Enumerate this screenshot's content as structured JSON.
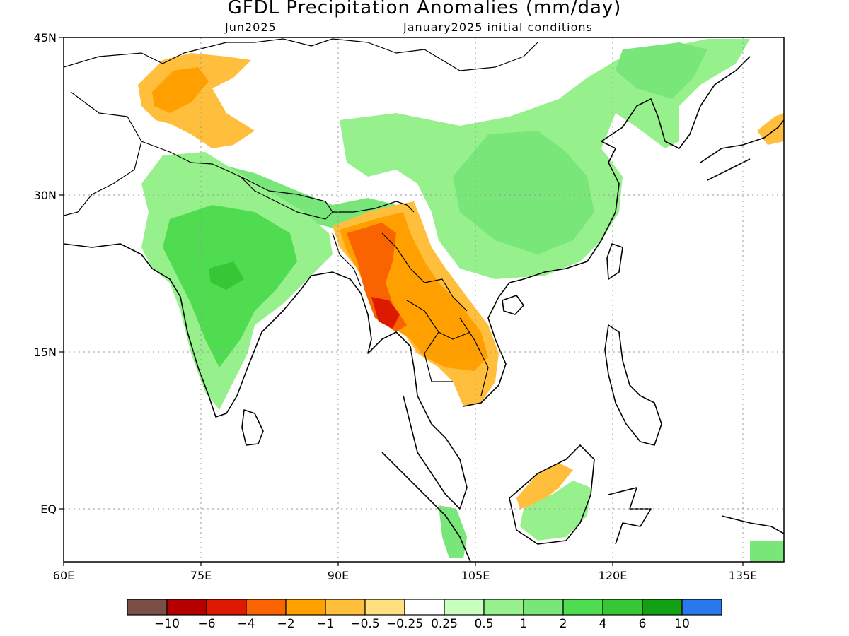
{
  "title": "GFDL Precipitation Anomalies (mm/day)",
  "subtitle_left": "Jun2025",
  "subtitle_right": "January2025 initial conditions",
  "latitude_labels": [
    "45N",
    "30N",
    "15N",
    "EQ"
  ],
  "longitude_labels": [
    "60E",
    "75E",
    "90E",
    "105E",
    "120E",
    "135E"
  ],
  "colorbar": {
    "colors": [
      "#7a5046",
      "#b50000",
      "#dd1a00",
      "#fa6400",
      "#ffa000",
      "#ffbe3c",
      "#ffe080",
      "#ffffff",
      "#c8ffbe",
      "#96f08c",
      "#78e678",
      "#50dc50",
      "#36c636",
      "#14a014",
      "#2a78ee"
    ],
    "tick_labels": [
      "−10",
      "−6",
      "−4",
      "−2",
      "−1",
      "−0.5",
      "−0.25",
      "0.25",
      "0.5",
      "1",
      "2",
      "4",
      "6",
      "10"
    ]
  },
  "colors": {
    "land_outline": "#000000",
    "grid": "#9a9a9a",
    "wet_light": "#96f08c",
    "wet_mid": "#78e678",
    "wet_strong": "#50dc50",
    "dry_light": "#ffbe3c",
    "dry_mid": "#ffa000",
    "dry_strong": "#fa6400",
    "dry_extreme": "#dd1a00"
  }
}
